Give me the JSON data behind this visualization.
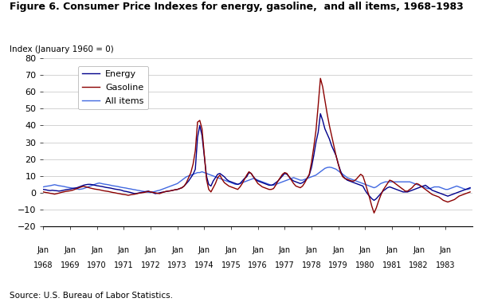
{
  "title": "Figure 6. Consumer Price Indexes for energy, gasoline,  and all items, 1968–1983",
  "ylabel": "Index (January 1960 = 0)",
  "source": "Source: U.S. Bureau of Labor Statistics.",
  "ylim": [
    -20,
    80
  ],
  "yticks": [
    -20,
    -10,
    0,
    10,
    20,
    30,
    40,
    50,
    60,
    70,
    80
  ],
  "energy_color": "#00008B",
  "gasoline_color": "#8B0000",
  "allitems_color": "#4169E1",
  "legend_labels": [
    "Energy",
    "Gasoline",
    "All items"
  ],
  "energy": [
    2.0,
    1.8,
    1.5,
    1.3,
    1.5,
    1.3,
    1.2,
    1.0,
    1.2,
    1.5,
    1.8,
    2.0,
    2.2,
    2.5,
    2.8,
    3.0,
    3.5,
    4.0,
    4.5,
    4.8,
    5.0,
    5.0,
    4.8,
    4.5,
    4.2,
    4.0,
    3.8,
    3.5,
    3.2,
    3.0,
    2.8,
    2.5,
    2.2,
    2.0,
    1.8,
    1.5,
    1.0,
    0.8,
    0.5,
    0.2,
    -0.2,
    -0.5,
    -0.3,
    0.0,
    0.2,
    0.5,
    0.8,
    1.0,
    0.5,
    0.2,
    -0.5,
    -0.3,
    0.0,
    0.3,
    0.5,
    0.8,
    1.0,
    1.2,
    1.5,
    1.8,
    2.0,
    2.5,
    3.0,
    4.0,
    5.5,
    7.0,
    9.0,
    11.0,
    14.0,
    33.0,
    40.0,
    34.0,
    22.0,
    10.0,
    5.0,
    4.0,
    7.0,
    9.0,
    11.0,
    11.5,
    10.5,
    9.5,
    8.0,
    7.0,
    6.5,
    6.0,
    5.5,
    5.0,
    5.5,
    7.0,
    8.5,
    9.5,
    12.0,
    11.5,
    9.5,
    8.0,
    7.0,
    6.5,
    6.0,
    5.5,
    5.0,
    4.5,
    4.5,
    5.0,
    6.0,
    7.0,
    8.5,
    10.0,
    11.5,
    11.0,
    9.5,
    8.0,
    7.0,
    6.5,
    6.0,
    5.5,
    6.0,
    7.0,
    8.5,
    10.5,
    15.0,
    22.0,
    30.0,
    36.0,
    47.0,
    43.0,
    38.0,
    35.0,
    32.0,
    28.0,
    25.0,
    22.0,
    17.0,
    13.0,
    10.0,
    8.5,
    7.5,
    7.0,
    6.5,
    6.0,
    5.5,
    5.0,
    4.5,
    4.0,
    1.5,
    -0.5,
    -2.0,
    -3.5,
    -4.5,
    -3.5,
    -2.0,
    -0.5,
    1.0,
    2.0,
    3.0,
    3.5,
    3.0,
    2.5,
    2.0,
    1.5,
    1.0,
    0.5,
    0.5,
    0.5,
    1.0,
    1.5,
    2.0,
    2.5,
    3.0,
    3.5,
    4.0,
    4.5,
    3.5,
    2.5,
    1.5,
    1.0,
    0.5,
    0.0,
    -0.5,
    -1.0,
    -1.5,
    -2.0,
    -1.5,
    -1.0,
    -0.5,
    0.0,
    0.5,
    1.0,
    1.5,
    2.0,
    2.5,
    3.0,
    3.5,
    4.0,
    4.5,
    5.0,
    4.5,
    4.0,
    3.5,
    3.0,
    2.5,
    2.0,
    1.5,
    1.0
  ],
  "gasoline": [
    0.5,
    0.2,
    0.0,
    -0.3,
    -0.5,
    -0.8,
    -0.5,
    -0.2,
    0.2,
    0.5,
    0.8,
    1.0,
    1.2,
    1.5,
    2.0,
    2.5,
    3.0,
    3.5,
    3.8,
    3.5,
    3.2,
    2.8,
    2.5,
    2.2,
    2.0,
    1.8,
    1.5,
    1.2,
    1.0,
    0.8,
    0.5,
    0.2,
    0.0,
    -0.3,
    -0.5,
    -0.8,
    -1.0,
    -1.2,
    -1.5,
    -1.2,
    -1.0,
    -0.8,
    -0.5,
    -0.2,
    0.0,
    0.2,
    0.5,
    0.8,
    0.5,
    0.2,
    0.0,
    -0.3,
    -0.5,
    0.0,
    0.5,
    0.8,
    1.0,
    1.2,
    1.5,
    1.8,
    2.0,
    2.5,
    3.0,
    4.0,
    6.0,
    9.0,
    12.0,
    17.0,
    25.0,
    42.0,
    43.0,
    38.0,
    23.0,
    8.0,
    2.0,
    0.5,
    3.0,
    5.5,
    9.0,
    10.5,
    8.0,
    6.0,
    5.0,
    4.0,
    3.5,
    3.0,
    2.5,
    2.0,
    3.5,
    5.5,
    8.0,
    10.5,
    12.5,
    11.5,
    9.5,
    7.5,
    5.5,
    4.5,
    3.5,
    3.0,
    2.5,
    2.0,
    2.0,
    2.5,
    4.5,
    7.0,
    9.0,
    11.0,
    12.0,
    11.5,
    9.5,
    7.5,
    5.5,
    4.0,
    3.5,
    3.0,
    4.0,
    6.0,
    8.5,
    11.0,
    18.0,
    27.0,
    37.0,
    52.0,
    68.0,
    63.0,
    55.0,
    47.0,
    40.0,
    34.0,
    28.0,
    22.0,
    17.0,
    12.0,
    9.5,
    8.5,
    8.0,
    7.5,
    7.0,
    7.0,
    8.0,
    9.5,
    11.0,
    10.0,
    6.0,
    1.5,
    -3.0,
    -8.0,
    -12.0,
    -9.0,
    -5.0,
    -1.5,
    1.5,
    3.5,
    5.5,
    7.5,
    7.0,
    6.0,
    5.0,
    4.0,
    3.0,
    2.0,
    1.0,
    1.0,
    2.0,
    3.0,
    4.5,
    5.5,
    5.0,
    4.0,
    3.0,
    2.0,
    1.0,
    0.0,
    -1.0,
    -1.5,
    -2.0,
    -2.5,
    -3.5,
    -4.5,
    -5.0,
    -5.5,
    -5.0,
    -4.5,
    -4.0,
    -3.0,
    -2.0,
    -1.5,
    -1.0,
    -0.5,
    0.0,
    0.5,
    1.0,
    2.0,
    3.0,
    3.5,
    3.0,
    2.5,
    2.0,
    1.5,
    1.0,
    0.5,
    0.0,
    -0.5
  ],
  "allitems": [
    3.5,
    3.8,
    4.0,
    4.2,
    4.5,
    4.8,
    4.5,
    4.2,
    4.0,
    3.8,
    3.5,
    3.2,
    3.0,
    2.8,
    2.5,
    2.3,
    2.0,
    2.2,
    2.5,
    3.0,
    3.5,
    4.0,
    4.5,
    5.0,
    5.5,
    5.8,
    5.5,
    5.2,
    5.0,
    4.8,
    4.5,
    4.2,
    4.0,
    3.8,
    3.5,
    3.2,
    3.0,
    2.8,
    2.5,
    2.3,
    2.0,
    1.8,
    1.5,
    1.3,
    1.0,
    0.8,
    0.5,
    0.3,
    0.2,
    0.5,
    0.8,
    1.2,
    1.5,
    2.0,
    2.5,
    3.0,
    3.5,
    4.0,
    4.5,
    5.0,
    5.5,
    6.5,
    7.5,
    8.5,
    9.5,
    10.0,
    10.5,
    11.0,
    11.5,
    12.0,
    12.0,
    12.5,
    12.0,
    11.5,
    11.0,
    10.5,
    10.0,
    9.5,
    9.0,
    8.5,
    8.0,
    7.5,
    7.0,
    6.5,
    6.0,
    5.5,
    5.0,
    5.0,
    5.5,
    6.0,
    6.5,
    7.0,
    7.5,
    8.0,
    8.5,
    8.0,
    7.5,
    7.0,
    6.5,
    6.0,
    5.5,
    5.0,
    4.5,
    4.5,
    5.0,
    5.5,
    6.0,
    6.5,
    7.0,
    7.5,
    8.0,
    8.5,
    9.0,
    8.5,
    8.0,
    7.5,
    7.5,
    8.0,
    8.5,
    9.0,
    9.5,
    10.0,
    10.5,
    11.5,
    12.5,
    13.5,
    14.5,
    15.0,
    15.2,
    15.0,
    14.5,
    14.0,
    13.0,
    12.0,
    11.0,
    10.0,
    9.0,
    8.5,
    8.0,
    7.5,
    7.0,
    6.5,
    6.0,
    5.5,
    5.0,
    4.5,
    4.0,
    3.5,
    3.0,
    3.5,
    4.5,
    5.5,
    6.0,
    6.5,
    6.5,
    6.5,
    6.5,
    6.5,
    6.5,
    6.5,
    6.5,
    6.5,
    6.5,
    6.5,
    6.5,
    6.0,
    5.5,
    5.0,
    4.5,
    4.0,
    3.5,
    3.0,
    2.5,
    2.5,
    3.0,
    3.5,
    3.5,
    3.5,
    3.0,
    2.5,
    2.0,
    2.0,
    2.5,
    3.0,
    3.5,
    4.0,
    3.5,
    3.0,
    2.5,
    2.0,
    2.0,
    2.5,
    3.0,
    3.5,
    4.0,
    4.5,
    4.0,
    3.5,
    3.0,
    2.5,
    2.5,
    3.0,
    3.5,
    4.0
  ]
}
